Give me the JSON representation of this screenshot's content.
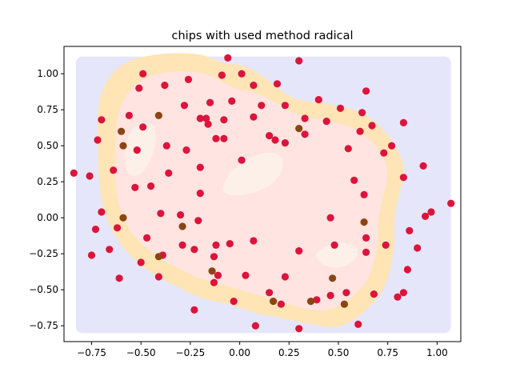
{
  "chart_data": {
    "type": "scatter",
    "title": "chips with used method radical",
    "xlabel": "",
    "ylabel": "",
    "xlim": [
      -0.89,
      1.12
    ],
    "ylim": [
      -0.86,
      1.19
    ],
    "xticks": [
      -0.75,
      -0.5,
      -0.25,
      0.0,
      0.25,
      0.5,
      0.75,
      1.0
    ],
    "xtick_labels": [
      "−0.75",
      "−0.50",
      "−0.25",
      "0.00",
      "0.25",
      "0.50",
      "0.75",
      "1.00"
    ],
    "yticks": [
      -0.75,
      -0.5,
      -0.25,
      0.0,
      0.25,
      0.5,
      0.75,
      1.0
    ],
    "ytick_labels": [
      "−0.75",
      "−0.50",
      "−0.25",
      "0.00",
      "0.25",
      "0.50",
      "0.75",
      "1.00"
    ],
    "grid": false,
    "background_regions": {
      "outer_color": "#e6e6fa",
      "band_color": "#ffe4b5",
      "inner_color": "#ffe4e1",
      "core_color": "#fdf0e8",
      "outer_x_range": [
        -0.83,
        1.07
      ],
      "outer_y_range": [
        -0.8,
        1.12
      ]
    },
    "series": [
      {
        "color": "#dc143c",
        "points": [
          [
            -0.84,
            0.31
          ],
          [
            -0.76,
            0.29
          ],
          [
            -0.75,
            -0.26
          ],
          [
            -0.73,
            -0.08
          ],
          [
            -0.72,
            0.54
          ],
          [
            -0.7,
            0.68
          ],
          [
            -0.7,
            0.04
          ],
          [
            -0.66,
            -0.22
          ],
          [
            -0.64,
            0.33
          ],
          [
            -0.62,
            -0.07
          ],
          [
            -0.61,
            -0.42
          ],
          [
            -0.56,
            0.71
          ],
          [
            -0.53,
            0.21
          ],
          [
            -0.52,
            0.47
          ],
          [
            -0.51,
            0.9
          ],
          [
            -0.5,
            -0.31
          ],
          [
            -0.49,
            0.63
          ],
          [
            -0.49,
            1.0
          ],
          [
            -0.47,
            -0.14
          ],
          [
            -0.45,
            0.22
          ],
          [
            -0.41,
            -0.41
          ],
          [
            -0.4,
            0.03
          ],
          [
            -0.39,
            -0.26
          ],
          [
            -0.38,
            0.92
          ],
          [
            -0.37,
            0.5
          ],
          [
            -0.36,
            0.31
          ],
          [
            -0.3,
            0.02
          ],
          [
            -0.29,
            -0.19
          ],
          [
            -0.28,
            0.78
          ],
          [
            -0.27,
            0.47
          ],
          [
            -0.26,
            0.96
          ],
          [
            -0.23,
            -0.22
          ],
          [
            -0.23,
            -0.64
          ],
          [
            -0.21,
            -0.02
          ],
          [
            -0.2,
            0.17
          ],
          [
            -0.2,
            0.35
          ],
          [
            -0.2,
            0.69
          ],
          [
            -0.17,
            0.69
          ],
          [
            -0.16,
            0.65
          ],
          [
            -0.15,
            0.8
          ],
          [
            -0.13,
            -0.27
          ],
          [
            -0.13,
            -0.45
          ],
          [
            -0.12,
            -0.19
          ],
          [
            -0.12,
            0.55
          ],
          [
            -0.11,
            -0.4
          ],
          [
            -0.09,
            0.99
          ],
          [
            -0.08,
            0.55
          ],
          [
            -0.08,
            0.68
          ],
          [
            -0.06,
            1.11
          ],
          [
            -0.05,
            -0.18
          ],
          [
            -0.04,
            0.81
          ],
          [
            -0.03,
            -0.58
          ],
          [
            0.01,
            1.0
          ],
          [
            0.01,
            0.4
          ],
          [
            0.03,
            -0.4
          ],
          [
            0.07,
            0.92
          ],
          [
            0.07,
            0.7
          ],
          [
            0.07,
            -0.16
          ],
          [
            0.08,
            -0.75
          ],
          [
            0.11,
            0.78
          ],
          [
            0.15,
            -0.52
          ],
          [
            0.15,
            0.57
          ],
          [
            0.18,
            0.54
          ],
          [
            0.19,
            0.93
          ],
          [
            0.21,
            -0.6
          ],
          [
            0.23,
            0.78
          ],
          [
            0.23,
            0.52
          ],
          [
            0.23,
            -0.41
          ],
          [
            0.3,
            1.09
          ],
          [
            0.3,
            -0.77
          ],
          [
            0.3,
            -0.23
          ],
          [
            0.33,
            0.69
          ],
          [
            0.33,
            0.58
          ],
          [
            0.39,
            -0.57
          ],
          [
            0.4,
            0.82
          ],
          [
            0.44,
            0.67
          ],
          [
            0.46,
            0.0
          ],
          [
            0.46,
            -0.54
          ],
          [
            0.48,
            -0.19
          ],
          [
            0.51,
            0.76
          ],
          [
            0.54,
            -0.52
          ],
          [
            0.55,
            0.48
          ],
          [
            0.58,
            0.26
          ],
          [
            0.6,
            -0.74
          ],
          [
            0.61,
            0.6
          ],
          [
            0.62,
            0.73
          ],
          [
            0.63,
            0.16
          ],
          [
            0.64,
            0.88
          ],
          [
            0.64,
            -0.14
          ],
          [
            0.64,
            -0.24
          ],
          [
            0.67,
            0.64
          ],
          [
            0.68,
            -0.53
          ],
          [
            0.73,
            0.45
          ],
          [
            0.74,
            -0.19
          ],
          [
            0.77,
            0.5
          ],
          [
            0.8,
            -0.55
          ],
          [
            0.83,
            0.66
          ],
          [
            0.83,
            0.28
          ],
          [
            0.83,
            -0.52
          ],
          [
            0.85,
            -0.36
          ],
          [
            0.86,
            -0.09
          ],
          [
            0.9,
            -0.21
          ],
          [
            0.93,
            0.36
          ],
          [
            0.94,
            0.01
          ],
          [
            0.97,
            0.04
          ],
          [
            1.07,
            0.1
          ]
        ]
      },
      {
        "color": "#8b4513",
        "points": [
          [
            -0.6,
            0.6
          ],
          [
            -0.59,
            0.5
          ],
          [
            -0.59,
            0.0
          ],
          [
            -0.41,
            0.71
          ],
          [
            -0.41,
            -0.27
          ],
          [
            -0.29,
            -0.06
          ],
          [
            -0.14,
            -0.37
          ],
          [
            0.17,
            -0.58
          ],
          [
            0.3,
            0.62
          ],
          [
            0.36,
            -0.58
          ],
          [
            0.47,
            -0.42
          ],
          [
            0.53,
            -0.6
          ],
          [
            0.63,
            -0.03
          ]
        ]
      }
    ]
  }
}
